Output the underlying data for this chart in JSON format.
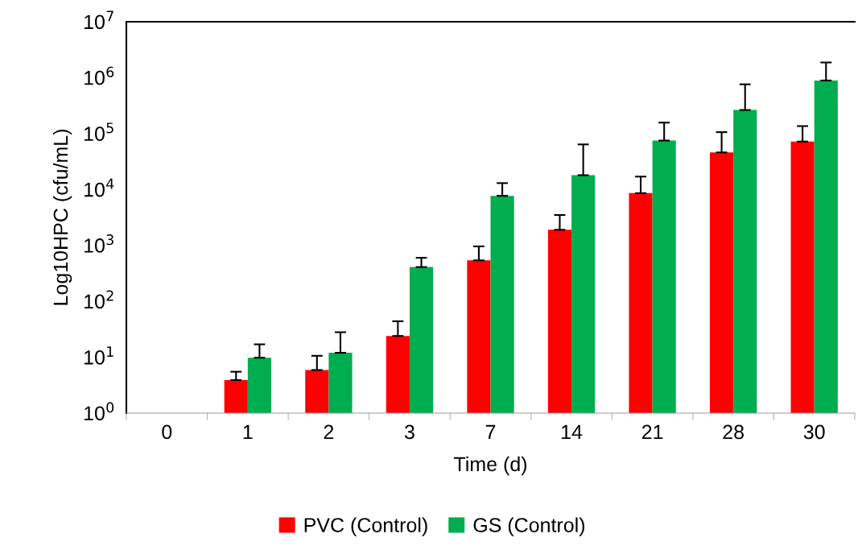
{
  "chart_data": {
    "type": "bar",
    "xlabel": "Time (d)",
    "ylabel": "Log10HPC (cfu/mL)",
    "categories": [
      "0",
      "1",
      "2",
      "3",
      "7",
      "14",
      "21",
      "28",
      "30"
    ],
    "series": [
      {
        "name": "PVC (Control)",
        "color": "#ff0000",
        "values": [
          null,
          3.9,
          5.9,
          24,
          540,
          1900,
          8600,
          46000,
          72000
        ],
        "errors": [
          null,
          [
            3.9,
            5.5
          ],
          [
            5.9,
            10.6
          ],
          [
            24,
            44
          ],
          [
            540,
            960
          ],
          [
            1900,
            3500
          ],
          [
            8600,
            17000
          ],
          [
            46000,
            106000
          ],
          [
            72000,
            136000
          ]
        ]
      },
      {
        "name": "GS (Control)",
        "color": "#00ad4f",
        "values": [
          null,
          9.8,
          12,
          410,
          7700,
          18000,
          75000,
          264000,
          890000
        ],
        "errors": [
          null,
          [
            9.8,
            17
          ],
          [
            12,
            28
          ],
          [
            410,
            600
          ],
          [
            7700,
            13000
          ],
          [
            18000,
            64000
          ],
          [
            75000,
            157000
          ],
          [
            264000,
            760000
          ],
          [
            890000,
            1870000
          ]
        ]
      }
    ],
    "log": "y",
    "ylim": [
      1,
      10000000
    ],
    "yticks": [
      {
        "value": 1,
        "label": "10$^{0}$"
      },
      {
        "value": 10,
        "label": "10$^{1}$"
      },
      {
        "value": 100,
        "label": "10$^{2}$"
      },
      {
        "value": 1000,
        "label": "10$^{3}$"
      },
      {
        "value": 10000,
        "label": "10$^{4}$"
      },
      {
        "value": 100000,
        "label": "10$^{5}$"
      },
      {
        "value": 1000000,
        "label": "10$^{6}$"
      },
      {
        "value": 10000000,
        "label": "10$^{7}$"
      }
    ],
    "grid": false,
    "legend": "bottom"
  }
}
